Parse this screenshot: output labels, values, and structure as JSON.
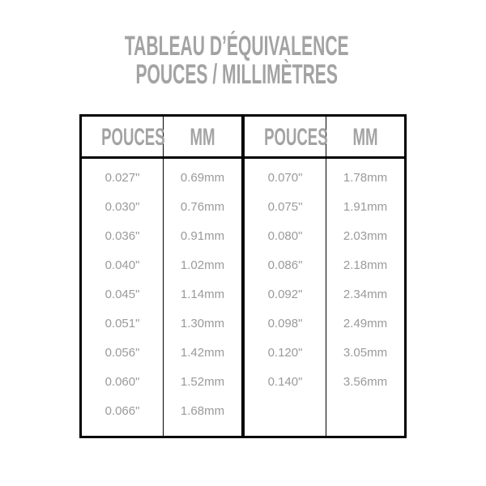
{
  "title": {
    "line1": "TABLEAU D’ÉQUIVALENCE",
    "line2": "POUCES / MILLIMÈTRES"
  },
  "table": {
    "headers": [
      "POUCES",
      "MM",
      "POUCES",
      "MM"
    ],
    "left": [
      [
        "0.027\"",
        "0.69mm"
      ],
      [
        "0.030\"",
        "0.76mm"
      ],
      [
        "0.036\"",
        "0.91mm"
      ],
      [
        "0.040\"",
        "1.02mm"
      ],
      [
        "0.045\"",
        "1.14mm"
      ],
      [
        "0.051\"",
        "1.30mm"
      ],
      [
        "0.056\"",
        "1.42mm"
      ],
      [
        "0.060\"",
        "1.52mm"
      ],
      [
        "0.066\"",
        "1.68mm"
      ]
    ],
    "right": [
      [
        "0.070\"",
        "1.78mm"
      ],
      [
        "0.075\"",
        "1.91mm"
      ],
      [
        "0.080\"",
        "2.03mm"
      ],
      [
        "0.086\"",
        "2.18mm"
      ],
      [
        "0.092\"",
        "2.34mm"
      ],
      [
        "0.098\"",
        "2.49mm"
      ],
      [
        "0.120\"",
        "3.05mm"
      ],
      [
        "0.140\"",
        "3.56mm"
      ]
    ]
  },
  "colors": {
    "text": "#a3a3a3",
    "border": "#000000"
  }
}
